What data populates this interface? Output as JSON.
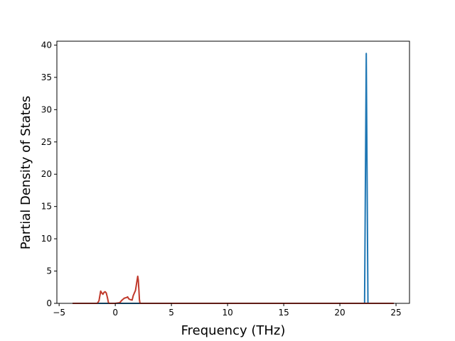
{
  "chart_data": {
    "type": "line",
    "title": "",
    "xlabel": "Frequency (THz)",
    "ylabel": "Partial Density of States",
    "xlim": [
      -5.2,
      26.2
    ],
    "ylim": [
      0,
      40.6
    ],
    "xticks": [
      -5,
      0,
      5,
      10,
      15,
      20,
      25
    ],
    "yticks": [
      0,
      5,
      10,
      15,
      20,
      25,
      30,
      35,
      40
    ],
    "grid": false,
    "legend": "none",
    "series": [
      {
        "color": "#1f77b4",
        "x": [
          -3.8,
          22.1,
          22.2,
          22.35,
          22.5,
          22.6,
          24.8
        ],
        "y": [
          0,
          0,
          0,
          38.7,
          0,
          0,
          0
        ]
      },
      {
        "color": "#c0392b",
        "x": [
          -3.8,
          -1.6,
          -1.45,
          -1.3,
          -1.2,
          -1.1,
          -1.0,
          -0.9,
          -0.8,
          -0.7,
          -0.6,
          -0.5,
          0.0,
          0.4,
          0.6,
          0.8,
          1.0,
          1.1,
          1.2,
          1.3,
          1.5,
          1.6,
          1.7,
          1.8,
          1.9,
          2.0,
          2.05,
          2.1,
          2.15,
          2.2,
          2.3,
          24.8
        ],
        "y": [
          0,
          0,
          0.4,
          1.9,
          1.6,
          1.4,
          1.7,
          1.8,
          1.6,
          0.9,
          0.05,
          0,
          0,
          0.1,
          0.5,
          0.8,
          0.9,
          1.0,
          0.7,
          0.6,
          0.5,
          1.2,
          1.6,
          2.0,
          3.1,
          4.2,
          3.6,
          2.2,
          0.6,
          0,
          0,
          0
        ]
      }
    ]
  }
}
